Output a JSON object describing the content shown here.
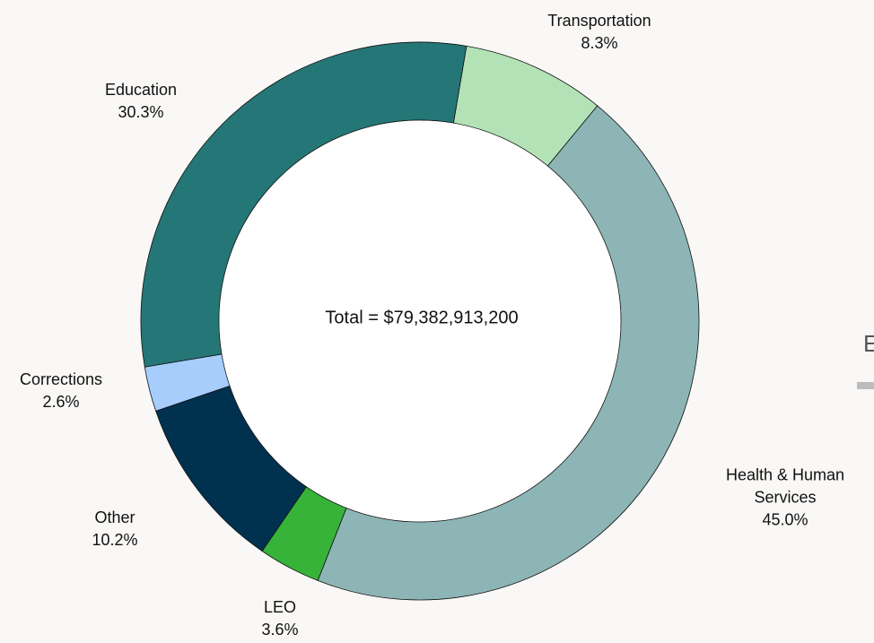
{
  "chart_data": {
    "type": "donut",
    "center_label": "Total = $79,382,913,200",
    "categories": [
      "Transportation",
      "Health & Human Services",
      "LEO",
      "Other",
      "Corrections",
      "Education"
    ],
    "values": [
      8.3,
      45.0,
      3.6,
      10.2,
      2.6,
      30.3
    ],
    "value_labels": [
      "8.3%",
      "45.0%",
      "3.6%",
      "10.2%",
      "2.6%",
      "30.3%"
    ],
    "colors": [
      "#b3e2b6",
      "#8db5b5",
      "#37b33a",
      "#003250",
      "#a6cdfc",
      "#257676"
    ]
  },
  "side_panel": {
    "text": "E"
  }
}
